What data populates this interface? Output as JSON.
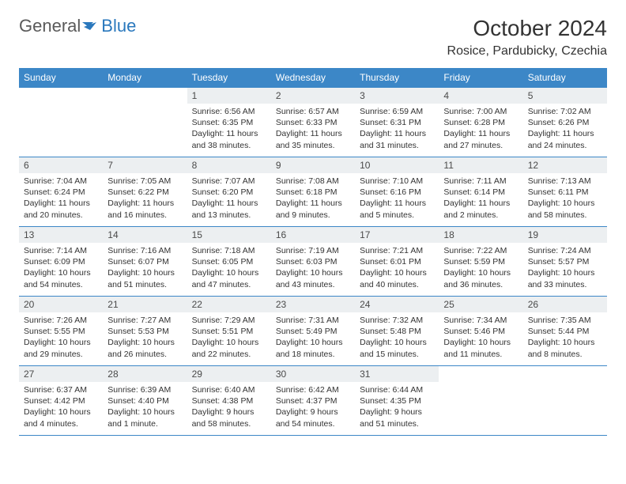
{
  "logo": {
    "textA": "General",
    "textB": "Blue"
  },
  "title": "October 2024",
  "location": "Rosice, Pardubicky, Czechia",
  "colors": {
    "header_bg": "#3c87c7",
    "header_text": "#ffffff",
    "daynum_bg": "#eceff1",
    "border": "#3c87c7",
    "logo_gray": "#5a5a5a",
    "logo_blue": "#2a78bd"
  },
  "weekdays": [
    "Sunday",
    "Monday",
    "Tuesday",
    "Wednesday",
    "Thursday",
    "Friday",
    "Saturday"
  ],
  "weeks": [
    [
      null,
      null,
      {
        "n": "1",
        "sunrise": "6:56 AM",
        "sunset": "6:35 PM",
        "daylight": "11 hours and 38 minutes."
      },
      {
        "n": "2",
        "sunrise": "6:57 AM",
        "sunset": "6:33 PM",
        "daylight": "11 hours and 35 minutes."
      },
      {
        "n": "3",
        "sunrise": "6:59 AM",
        "sunset": "6:31 PM",
        "daylight": "11 hours and 31 minutes."
      },
      {
        "n": "4",
        "sunrise": "7:00 AM",
        "sunset": "6:28 PM",
        "daylight": "11 hours and 27 minutes."
      },
      {
        "n": "5",
        "sunrise": "7:02 AM",
        "sunset": "6:26 PM",
        "daylight": "11 hours and 24 minutes."
      }
    ],
    [
      {
        "n": "6",
        "sunrise": "7:04 AM",
        "sunset": "6:24 PM",
        "daylight": "11 hours and 20 minutes."
      },
      {
        "n": "7",
        "sunrise": "7:05 AM",
        "sunset": "6:22 PM",
        "daylight": "11 hours and 16 minutes."
      },
      {
        "n": "8",
        "sunrise": "7:07 AM",
        "sunset": "6:20 PM",
        "daylight": "11 hours and 13 minutes."
      },
      {
        "n": "9",
        "sunrise": "7:08 AM",
        "sunset": "6:18 PM",
        "daylight": "11 hours and 9 minutes."
      },
      {
        "n": "10",
        "sunrise": "7:10 AM",
        "sunset": "6:16 PM",
        "daylight": "11 hours and 5 minutes."
      },
      {
        "n": "11",
        "sunrise": "7:11 AM",
        "sunset": "6:14 PM",
        "daylight": "11 hours and 2 minutes."
      },
      {
        "n": "12",
        "sunrise": "7:13 AM",
        "sunset": "6:11 PM",
        "daylight": "10 hours and 58 minutes."
      }
    ],
    [
      {
        "n": "13",
        "sunrise": "7:14 AM",
        "sunset": "6:09 PM",
        "daylight": "10 hours and 54 minutes."
      },
      {
        "n": "14",
        "sunrise": "7:16 AM",
        "sunset": "6:07 PM",
        "daylight": "10 hours and 51 minutes."
      },
      {
        "n": "15",
        "sunrise": "7:18 AM",
        "sunset": "6:05 PM",
        "daylight": "10 hours and 47 minutes."
      },
      {
        "n": "16",
        "sunrise": "7:19 AM",
        "sunset": "6:03 PM",
        "daylight": "10 hours and 43 minutes."
      },
      {
        "n": "17",
        "sunrise": "7:21 AM",
        "sunset": "6:01 PM",
        "daylight": "10 hours and 40 minutes."
      },
      {
        "n": "18",
        "sunrise": "7:22 AM",
        "sunset": "5:59 PM",
        "daylight": "10 hours and 36 minutes."
      },
      {
        "n": "19",
        "sunrise": "7:24 AM",
        "sunset": "5:57 PM",
        "daylight": "10 hours and 33 minutes."
      }
    ],
    [
      {
        "n": "20",
        "sunrise": "7:26 AM",
        "sunset": "5:55 PM",
        "daylight": "10 hours and 29 minutes."
      },
      {
        "n": "21",
        "sunrise": "7:27 AM",
        "sunset": "5:53 PM",
        "daylight": "10 hours and 26 minutes."
      },
      {
        "n": "22",
        "sunrise": "7:29 AM",
        "sunset": "5:51 PM",
        "daylight": "10 hours and 22 minutes."
      },
      {
        "n": "23",
        "sunrise": "7:31 AM",
        "sunset": "5:49 PM",
        "daylight": "10 hours and 18 minutes."
      },
      {
        "n": "24",
        "sunrise": "7:32 AM",
        "sunset": "5:48 PM",
        "daylight": "10 hours and 15 minutes."
      },
      {
        "n": "25",
        "sunrise": "7:34 AM",
        "sunset": "5:46 PM",
        "daylight": "10 hours and 11 minutes."
      },
      {
        "n": "26",
        "sunrise": "7:35 AM",
        "sunset": "5:44 PM",
        "daylight": "10 hours and 8 minutes."
      }
    ],
    [
      {
        "n": "27",
        "sunrise": "6:37 AM",
        "sunset": "4:42 PM",
        "daylight": "10 hours and 4 minutes."
      },
      {
        "n": "28",
        "sunrise": "6:39 AM",
        "sunset": "4:40 PM",
        "daylight": "10 hours and 1 minute."
      },
      {
        "n": "29",
        "sunrise": "6:40 AM",
        "sunset": "4:38 PM",
        "daylight": "9 hours and 58 minutes."
      },
      {
        "n": "30",
        "sunrise": "6:42 AM",
        "sunset": "4:37 PM",
        "daylight": "9 hours and 54 minutes."
      },
      {
        "n": "31",
        "sunrise": "6:44 AM",
        "sunset": "4:35 PM",
        "daylight": "9 hours and 51 minutes."
      },
      null,
      null
    ]
  ],
  "labels": {
    "sunrise": "Sunrise:",
    "sunset": "Sunset:",
    "daylight": "Daylight:"
  }
}
